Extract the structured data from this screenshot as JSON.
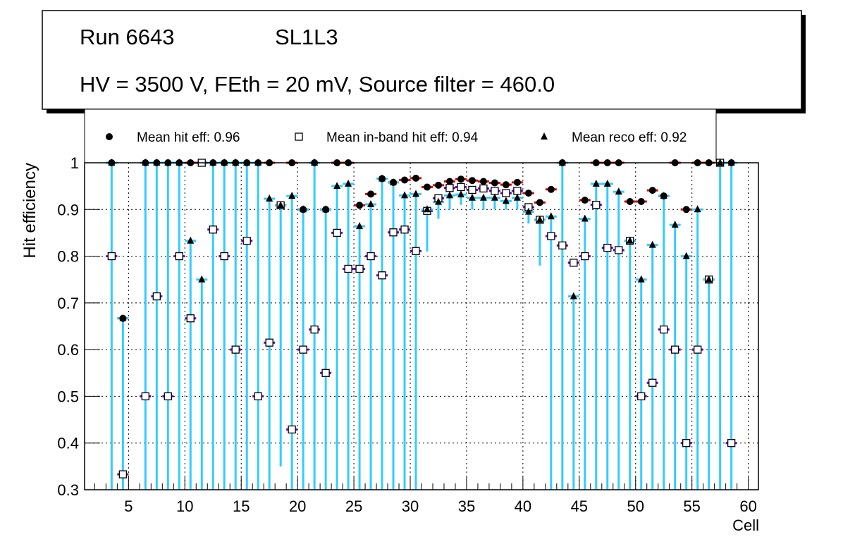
{
  "title_box": {
    "run": "Run 6643",
    "layer": "SL1L3",
    "conditions": "HV = 3500 V, FEth = 20 mV, Source filter = 460.0"
  },
  "chart_data": {
    "type": "scatter",
    "xlabel": "Cell",
    "ylabel": "Hit efficiency",
    "xlim": [
      1.1,
      60.9
    ],
    "ylim": [
      0.3,
      1.0
    ],
    "xticks": [
      5,
      10,
      15,
      20,
      25,
      30,
      35,
      40,
      45,
      50,
      55,
      60
    ],
    "yticks": [
      0.3,
      0.4,
      0.5,
      0.6,
      0.7,
      0.8,
      0.9,
      1
    ],
    "grid": true,
    "legend_placement": "top",
    "x": [
      3.5,
      4.5,
      6.5,
      7.5,
      8.5,
      9.5,
      10.5,
      11.5,
      12.5,
      13.5,
      14.5,
      15.5,
      16.5,
      17.5,
      18.5,
      19.5,
      20.5,
      21.5,
      22.5,
      23.5,
      24.5,
      25.5,
      26.5,
      27.5,
      28.5,
      29.5,
      30.5,
      31.5,
      32.5,
      33.5,
      34.5,
      35.5,
      36.5,
      37.5,
      38.5,
      39.5,
      40.5,
      41.5,
      42.5,
      43.5,
      44.5,
      45.5,
      46.5,
      47.5,
      48.5,
      49.5,
      50.5,
      51.5,
      52.5,
      53.5,
      54.5,
      55.5,
      56.5,
      57.5,
      58.5
    ],
    "series": [
      {
        "name": "Mean hit  eff: 0.96",
        "marker": "circle",
        "color": "#d40000",
        "values": [
          1,
          0.667,
          1,
          1,
          1,
          1,
          1,
          1,
          1,
          1,
          1,
          1,
          1,
          1,
          0.909,
          1,
          0.9,
          1,
          0.9,
          1,
          1,
          0.909,
          0.933,
          0.966,
          0.958,
          0.963,
          0.967,
          0.948,
          0.952,
          0.96,
          0.965,
          0.962,
          0.96,
          0.957,
          0.953,
          0.958,
          0.935,
          0.915,
          0.943,
          1,
          0.786,
          0.92,
          1,
          1,
          1,
          0.917,
          0.917,
          0.941,
          0.929,
          1,
          0.9,
          1,
          1,
          1,
          1
        ]
      },
      {
        "name": "Mean in-band hit eff: 0.94",
        "marker": "open-square",
        "color": "#6600cc",
        "values": [
          0.8,
          0.333,
          0.5,
          0.714,
          0.5,
          0.8,
          0.667,
          1,
          0.857,
          0.8,
          0.6,
          0.833,
          0.5,
          0.615,
          0.909,
          0.429,
          0.6,
          0.643,
          0.55,
          0.85,
          0.773,
          0.773,
          0.8,
          0.759,
          0.851,
          0.857,
          0.811,
          0.897,
          0.924,
          0.946,
          0.948,
          0.942,
          0.945,
          0.94,
          0.935,
          0.94,
          0.905,
          0.878,
          0.843,
          0.823,
          0.786,
          0.8,
          0.91,
          0.818,
          0.813,
          0.833,
          0.5,
          0.529,
          0.643,
          0.6,
          0.4,
          0.6,
          0.75,
          1,
          0.4
        ]
      },
      {
        "name": "Mean reco eff: 0.92",
        "marker": "triangle",
        "color": "#33ccff",
        "values": [
          1,
          0.667,
          1,
          1,
          1,
          1,
          0.833,
          0.75,
          1,
          1,
          1,
          1,
          1,
          0.923,
          0.909,
          0.929,
          0.9,
          1,
          0.9,
          0.95,
          0.955,
          0.864,
          0.911,
          0.966,
          0.958,
          0.93,
          0.933,
          0.9,
          0.916,
          0.93,
          0.932,
          0.925,
          0.925,
          0.925,
          0.918,
          0.925,
          0.895,
          0.878,
          0.885,
          1,
          0.714,
          0.88,
          0.955,
          0.955,
          0.938,
          0.833,
          0.75,
          0.824,
          0.929,
          0.867,
          0.8,
          0.9,
          0.75,
          1,
          1
        ],
        "error_low": [
          0.3,
          0.3,
          0.3,
          0.3,
          0.3,
          0.3,
          0.3,
          0.3,
          0.3,
          0.3,
          0.3,
          0.3,
          0.3,
          0.3,
          0.35,
          0.3,
          0.3,
          0.3,
          0.3,
          0.3,
          0.3,
          0.3,
          0.3,
          0.3,
          0.3,
          0.3,
          0.3,
          0.81,
          0.88,
          0.9,
          0.91,
          0.9,
          0.9,
          0.9,
          0.9,
          0.9,
          0.87,
          0.78,
          0.3,
          0.3,
          0.3,
          0.3,
          0.3,
          0.3,
          0.3,
          0.3,
          0.3,
          0.3,
          0.3,
          0.3,
          0.3,
          0.3,
          0.3,
          0.3,
          0.3
        ]
      }
    ]
  }
}
